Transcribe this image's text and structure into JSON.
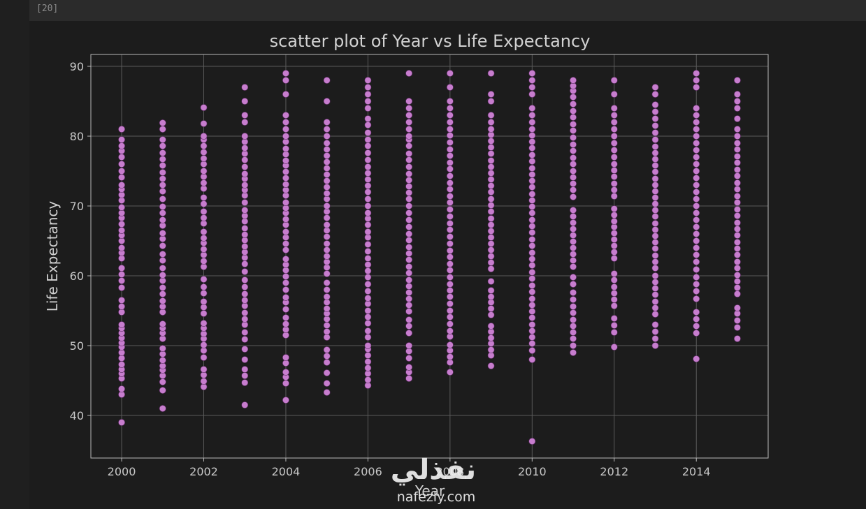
{
  "cell": {
    "execution_count": "[20]"
  },
  "chart_data": {
    "type": "scatter",
    "title": "scatter plot of Year vs Life Expectancy",
    "xlabel": "Year",
    "ylabel": "Life Expectancy",
    "xlim": [
      1999.25,
      2015.75
    ],
    "ylim": [
      33.9,
      91.7
    ],
    "xticks": [
      2000,
      2002,
      2004,
      2006,
      2008,
      2010,
      2012,
      2014
    ],
    "xtick_labels": [
      "2000",
      "2002",
      "2004",
      "2006",
      "2008",
      "2010",
      "2012",
      "2014"
    ],
    "yticks": [
      40,
      50,
      60,
      70,
      80,
      90
    ],
    "ytick_labels": [
      "40",
      "50",
      "60",
      "70",
      "80",
      "90"
    ],
    "grid": true,
    "marker_color": "#c77dce",
    "marker_edge": "#5a2c60",
    "series": [
      {
        "points": [
          {
            "x": 2000,
            "y": [
              39,
              43,
              43.8,
              45.3,
              46,
              46.6,
              47.3,
              48.2,
              49,
              49.8,
              50.4,
              51.1,
              51.8,
              52.5,
              53,
              54.8,
              55.6,
              56.5,
              58.3,
              59.3,
              60.2,
              61.1,
              62.5,
              63.3,
              64,
              65,
              65.8,
              66.5,
              67.4,
              68.3,
              69,
              69.8,
              70.8,
              71.6,
              72.4,
              73,
              74.1,
              75,
              76,
              77,
              77.9,
              78.6,
              79.5,
              81
            ]
          },
          {
            "x": 2001,
            "y": [
              41,
              43.6,
              44.8,
              45.7,
              46.5,
              47.1,
              47.9,
              48.8,
              49.6,
              51,
              51.8,
              52.5,
              53.1,
              54.8,
              55.6,
              56.4,
              57.4,
              58.3,
              59.3,
              60.1,
              61.1,
              62.2,
              63.1,
              64.3,
              65.3,
              66.1,
              67.2,
              68,
              69,
              69.9,
              71,
              72.1,
              73,
              73.9,
              74.8,
              75.8,
              76.7,
              77.6,
              78.6,
              79.5,
              81,
              81.9
            ]
          },
          {
            "x": 2002,
            "y": [
              44.1,
              44.9,
              45.8,
              46.6,
              48.3,
              49.3,
              50.1,
              51,
              51.7,
              52.5,
              53.2,
              54.6,
              55.5,
              56.3,
              57.5,
              58.4,
              59.5,
              61.3,
              62.1,
              63,
              63.8,
              64.7,
              65.4,
              66.3,
              67.5,
              68.3,
              69.2,
              70.3,
              71.2,
              72.5,
              73.3,
              74.2,
              75,
              76,
              76.8,
              77.7,
              78.6,
              79.5,
              80,
              81.8,
              84.1
            ]
          },
          {
            "x": 2003,
            "y": [
              41.5,
              44.7,
              45.7,
              46.6,
              48,
              49.5,
              50.9,
              51.9,
              53,
              53.8,
              54.7,
              55.7,
              56.5,
              57.4,
              58.4,
              59.4,
              60.6,
              61.7,
              62.6,
              63.4,
              64.2,
              65.1,
              65.9,
              66.8,
              67.8,
              68.6,
              69.4,
              70.5,
              71.5,
              72.3,
              73,
              73.9,
              74.6,
              75.6,
              76.6,
              77.5,
              78.3,
              79.2,
              80,
              82,
              83,
              85,
              87
            ]
          },
          {
            "x": 2004,
            "y": [
              42.2,
              44.6,
              45.5,
              46.2,
              47.5,
              48.3,
              51.5,
              52.3,
              53.1,
              54,
              55.2,
              56.2,
              56.9,
              58,
              59,
              59.9,
              60.8,
              61.6,
              62.4,
              63.7,
              64.6,
              65.5,
              66.3,
              67.3,
              68.1,
              69,
              69.7,
              70.5,
              71.5,
              72.3,
              73.1,
              74,
              74.9,
              75.8,
              76.5,
              77.4,
              78.2,
              79.2,
              80,
              81,
              82,
              83,
              86,
              88,
              89
            ]
          },
          {
            "x": 2005,
            "y": [
              43.3,
              44.6,
              46.1,
              47.6,
              48.5,
              49.4,
              51.2,
              52,
              52.9,
              53.8,
              54.6,
              55.3,
              56.2,
              57,
              58,
              59,
              60.3,
              61.2,
              62,
              62.8,
              63.7,
              64.6,
              65.6,
              66.5,
              67.3,
              68.3,
              69.2,
              70,
              71,
              71.8,
              72.7,
              73.6,
              74.5,
              75.4,
              76.3,
              77.2,
              78.1,
              79,
              80,
              81,
              82,
              85,
              88
            ]
          },
          {
            "x": 2006,
            "y": [
              44.3,
              45.1,
              46,
              46.8,
              47.7,
              48.6,
              49.5,
              50,
              51.2,
              52.1,
              53.2,
              54.1,
              55,
              56,
              56.8,
              57.8,
              58.8,
              59.8,
              60.7,
              61.6,
              62.5,
              63.5,
              64.5,
              65.5,
              66.3,
              67.3,
              68.2,
              69,
              70,
              71,
              72,
              72.9,
              73.8,
              74.7,
              75.6,
              76.6,
              77.6,
              78.6,
              79.5,
              80.5,
              81.6,
              82.5,
              84,
              85,
              86,
              87,
              88
            ]
          },
          {
            "x": 2007,
            "y": [
              45.3,
              46.2,
              46.9,
              48.2,
              49.2,
              50,
              51.8,
              52.8,
              53.7,
              54.9,
              55.8,
              56.7,
              57.6,
              58.5,
              59.4,
              60.4,
              61.3,
              62.3,
              63.2,
              64.1,
              65.1,
              66,
              67,
              68,
              69,
              70,
              71,
              71.9,
              72.8,
              73.7,
              74.6,
              75.6,
              76.6,
              77.5,
              78.6,
              79.5,
              80,
              81,
              82,
              83,
              84,
              85,
              89
            ]
          },
          {
            "x": 2008,
            "y": [
              46.2,
              47.6,
              48.4,
              49.3,
              50.1,
              51.3,
              52.1,
              53.1,
              54.1,
              55,
              56,
              57,
              57.9,
              58.8,
              59.8,
              60.8,
              61.7,
              62.7,
              63.6,
              64.6,
              65.6,
              66.6,
              67.5,
              68.5,
              69.5,
              70.5,
              71.4,
              72.4,
              73.3,
              74.3,
              75.3,
              76.2,
              77.2,
              78.1,
              79.1,
              80.1,
              81,
              82,
              83,
              84,
              85,
              87,
              89
            ]
          },
          {
            "x": 2009,
            "y": [
              47.1,
              48.6,
              49.4,
              50.3,
              51.1,
              52,
              52.8,
              54.4,
              55.3,
              56.2,
              57,
              57.9,
              59.2,
              61,
              61.9,
              62.8,
              63.7,
              64.6,
              65.5,
              66.4,
              67.3,
              68.2,
              69.2,
              70.1,
              71,
              72,
              72.9,
              73.8,
              74.7,
              75.6,
              76.5,
              77.5,
              78.4,
              79.3,
              80.2,
              81,
              82,
              83,
              85,
              86,
              89
            ]
          },
          {
            "x": 2010,
            "y": [
              36.3,
              48,
              49.3,
              50.3,
              51.2,
              52.1,
              53,
              54,
              54.9,
              55.8,
              56.7,
              57.7,
              58.6,
              59.6,
              60.5,
              61.5,
              62.4,
              63.3,
              64.3,
              65.2,
              66.2,
              67.1,
              68,
              69,
              69.9,
              70.8,
              71.7,
              72.7,
              73.6,
              74.5,
              75.4,
              76.4,
              77.3,
              78.3,
              79.2,
              80.1,
              81,
              82,
              83,
              84,
              86,
              87,
              88,
              89
            ]
          },
          {
            "x": 2011,
            "y": [
              49,
              50,
              51,
              51.9,
              52.8,
              53.7,
              54.7,
              55.6,
              56.6,
              57.6,
              58.8,
              59.8,
              61.3,
              62.2,
              63.1,
              64,
              64.9,
              65.8,
              66.7,
              67.6,
              68.5,
              69.4,
              71.3,
              72.3,
              73.2,
              74.1,
              75,
              76,
              76.9,
              77.9,
              78.8,
              79.8,
              80.8,
              81.7,
              82.7,
              83.6,
              84.6,
              85.6,
              86.5,
              87.2,
              88
            ]
          },
          {
            "x": 2012,
            "y": [
              49.8,
              51.9,
              52.9,
              53.9,
              55.7,
              56.6,
              57.5,
              58.4,
              59.4,
              60.3,
              62.5,
              63.4,
              64.3,
              65.2,
              66.1,
              67,
              67.8,
              68.7,
              69.6,
              71.4,
              72.3,
              73.2,
              74.2,
              75.1,
              76,
              77,
              78,
              79,
              80,
              81,
              82,
              83,
              84,
              86,
              88
            ]
          },
          {
            "x": 2013,
            "y": [
              50,
              51,
              52,
              53,
              54.5,
              55.4,
              56.3,
              57.3,
              58.2,
              59.1,
              60,
              61.1,
              62,
              62.9,
              63.9,
              64.8,
              65.7,
              66.6,
              67.5,
              68.5,
              69.4,
              70.3,
              71.2,
              72.1,
              73,
              73.9,
              74.9,
              75.8,
              76.7,
              77.6,
              78.5,
              79.5,
              80.5,
              81.5,
              82.5,
              83.5,
              84.5,
              86,
              87
            ]
          },
          {
            "x": 2014,
            "y": [
              48.1,
              51.8,
              52.8,
              53.8,
              54.8,
              56.7,
              57.8,
              58.8,
              59.8,
              60.9,
              62,
              63,
              64,
              65,
              66,
              67,
              68,
              69,
              70,
              71,
              72,
              73,
              74,
              75,
              76,
              77,
              78,
              79,
              80,
              81,
              82,
              83,
              84,
              87,
              88,
              89
            ]
          },
          {
            "x": 2015,
            "y": [
              51,
              52.6,
              53.6,
              54.6,
              55.4,
              57.4,
              58.3,
              59.2,
              60.1,
              61.1,
              62,
              63,
              63.9,
              64.8,
              65.8,
              66.7,
              67.6,
              68.6,
              69.5,
              70.5,
              71.4,
              72.4,
              73.3,
              74.3,
              75.2,
              76.2,
              77.1,
              78.1,
              79,
              80,
              81,
              82.5,
              84,
              85,
              86,
              88
            ]
          }
        ]
      }
    ]
  },
  "watermark": {
    "logo_text": "نفذلي",
    "domain": "nafezly.com"
  }
}
